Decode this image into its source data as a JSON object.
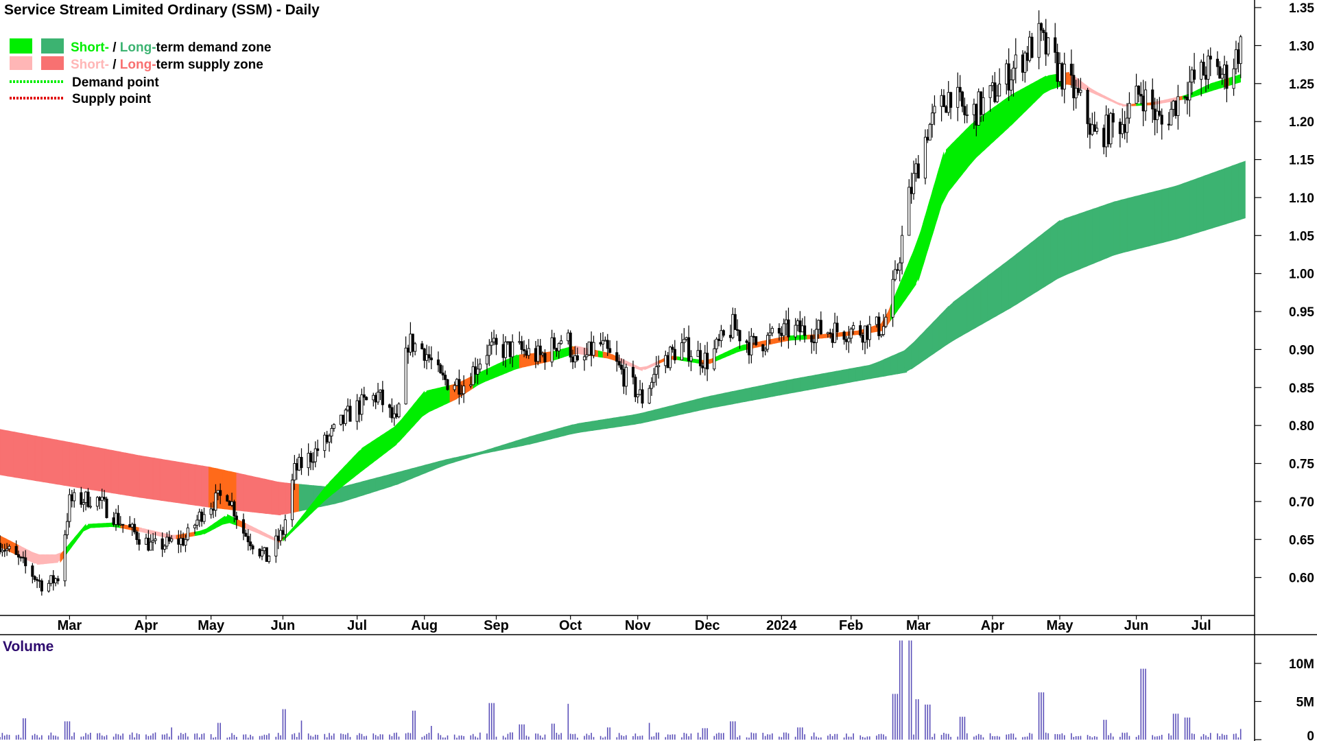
{
  "chart_data": {
    "type": "candlestick",
    "title": "Service Stream Limited Ordinary (SSM) - Daily",
    "legend": {
      "placement": "top-left",
      "items": [
        {
          "prefix": "Short-",
          "sep": " / ",
          "middle": "Long-",
          "suffix": "term demand zone",
          "short_color": "#00ee00",
          "long_color": "#3cb371"
        },
        {
          "prefix": "Short-",
          "sep": " / ",
          "middle": "Long-",
          "suffix": "term supply zone",
          "short_color": "#ffb6b6",
          "long_color": "#f87171"
        },
        {
          "label": "Demand point",
          "color": "#00ee00"
        },
        {
          "label": "Supply point",
          "color": "#e00000"
        }
      ]
    },
    "price_axis": {
      "min": 0.55,
      "max": 1.36,
      "ticks": [
        "1.35",
        "1.30",
        "1.25",
        "1.20",
        "1.15",
        "1.10",
        "1.05",
        "1.00",
        "0.95",
        "0.90",
        "0.85",
        "0.80",
        "0.75",
        "0.70",
        "0.65",
        "0.60"
      ]
    },
    "x_axis": {
      "start": "2023-01-30",
      "end": "2024-07-24",
      "labels": [
        {
          "label": "Mar",
          "date": "2023-03-01"
        },
        {
          "label": "Apr",
          "date": "2023-04-03"
        },
        {
          "label": "May",
          "date": "2023-05-01"
        },
        {
          "label": "Jun",
          "date": "2023-06-01"
        },
        {
          "label": "Jul",
          "date": "2023-07-03"
        },
        {
          "label": "Aug",
          "date": "2023-08-01"
        },
        {
          "label": "Sep",
          "date": "2023-09-01"
        },
        {
          "label": "Oct",
          "date": "2023-10-03"
        },
        {
          "label": "Nov",
          "date": "2023-11-01"
        },
        {
          "label": "Dec",
          "date": "2023-12-01"
        },
        {
          "label": "2024",
          "date": "2024-01-02"
        },
        {
          "label": "Feb",
          "date": "2024-02-01"
        },
        {
          "label": "Mar",
          "date": "2024-03-01"
        },
        {
          "label": "Apr",
          "date": "2024-04-02"
        },
        {
          "label": "May",
          "date": "2024-05-01"
        },
        {
          "label": "Jun",
          "date": "2024-06-03"
        },
        {
          "label": "Jul",
          "date": "2024-07-01"
        }
      ]
    },
    "price_path": [
      [
        "2023-01-30",
        0.645
      ],
      [
        "2023-02-08",
        0.62
      ],
      [
        "2023-02-18",
        0.588
      ],
      [
        "2023-02-24",
        0.6
      ],
      [
        "2023-03-01",
        0.7
      ],
      [
        "2023-03-12",
        0.705
      ],
      [
        "2023-03-24",
        0.67
      ],
      [
        "2023-04-06",
        0.64
      ],
      [
        "2023-04-20",
        0.65
      ],
      [
        "2023-04-28",
        0.69
      ],
      [
        "2023-05-08",
        0.712
      ],
      [
        "2023-05-15",
        0.66
      ],
      [
        "2023-05-25",
        0.625
      ],
      [
        "2023-06-01",
        0.66
      ],
      [
        "2023-06-06",
        0.74
      ],
      [
        "2023-06-20",
        0.78
      ],
      [
        "2023-07-01",
        0.82
      ],
      [
        "2023-07-12",
        0.84
      ],
      [
        "2023-07-20",
        0.8
      ],
      [
        "2023-07-25",
        0.91
      ],
      [
        "2023-08-01",
        0.9
      ],
      [
        "2023-08-08",
        0.86
      ],
      [
        "2023-08-18",
        0.855
      ],
      [
        "2023-08-28",
        0.9
      ],
      [
        "2023-09-10",
        0.9
      ],
      [
        "2023-09-20",
        0.89
      ],
      [
        "2023-10-01",
        0.92
      ],
      [
        "2023-10-06",
        0.875
      ],
      [
        "2023-10-15",
        0.91
      ],
      [
        "2023-10-25",
        0.87
      ],
      [
        "2023-11-03",
        0.835
      ],
      [
        "2023-11-10",
        0.88
      ],
      [
        "2023-11-20",
        0.905
      ],
      [
        "2023-12-01",
        0.885
      ],
      [
        "2023-12-12",
        0.93
      ],
      [
        "2023-12-20",
        0.905
      ],
      [
        "2024-01-05",
        0.925
      ],
      [
        "2024-01-20",
        0.925
      ],
      [
        "2024-02-05",
        0.925
      ],
      [
        "2024-02-15",
        0.93
      ],
      [
        "2024-02-20",
        0.99
      ],
      [
        "2024-02-26",
        1.1
      ],
      [
        "2024-03-05",
        1.19
      ],
      [
        "2024-03-15",
        1.24
      ],
      [
        "2024-03-22",
        1.205
      ],
      [
        "2024-04-02",
        1.235
      ],
      [
        "2024-04-15",
        1.285
      ],
      [
        "2024-04-22",
        1.31
      ],
      [
        "2024-04-30",
        1.27
      ],
      [
        "2024-05-10",
        1.225
      ],
      [
        "2024-05-16",
        1.18
      ],
      [
        "2024-05-28",
        1.2
      ],
      [
        "2024-06-05",
        1.24
      ],
      [
        "2024-06-14",
        1.195
      ],
      [
        "2024-06-24",
        1.245
      ],
      [
        "2024-07-04",
        1.27
      ],
      [
        "2024-07-12",
        1.26
      ],
      [
        "2024-07-18",
        1.3
      ]
    ],
    "short_zone": [
      [
        "2023-01-30",
        0.655,
        0.64
      ],
      [
        "2023-02-15",
        0.63,
        0.617
      ],
      [
        "2023-02-25",
        0.63,
        0.62
      ],
      [
        "2023-03-08",
        0.67,
        0.665
      ],
      [
        "2023-03-20",
        0.672,
        0.667
      ],
      [
        "2023-04-01",
        0.665,
        0.66
      ],
      [
        "2023-04-15",
        0.655,
        0.65
      ],
      [
        "2023-04-28",
        0.662,
        0.657
      ],
      [
        "2023-05-08",
        0.683,
        0.673
      ],
      [
        "2023-05-20",
        0.665,
        0.66
      ],
      [
        "2023-05-31",
        0.648,
        0.645
      ],
      [
        "2023-06-05",
        0.664,
        0.66
      ],
      [
        "2023-06-20",
        0.722,
        0.704
      ],
      [
        "2023-07-05",
        0.77,
        0.74
      ],
      [
        "2023-07-20",
        0.8,
        0.775
      ],
      [
        "2023-08-01",
        0.845,
        0.815
      ],
      [
        "2023-08-15",
        0.855,
        0.835
      ],
      [
        "2023-08-25",
        0.87,
        0.855
      ],
      [
        "2023-09-10",
        0.893,
        0.875
      ],
      [
        "2023-09-25",
        0.897,
        0.885
      ],
      [
        "2023-10-05",
        0.905,
        0.895
      ],
      [
        "2023-10-20",
        0.895,
        0.888
      ],
      [
        "2023-11-03",
        0.875,
        0.872
      ],
      [
        "2023-11-15",
        0.892,
        0.888
      ],
      [
        "2023-12-01",
        0.885,
        0.88
      ],
      [
        "2023-12-15",
        0.905,
        0.898
      ],
      [
        "2024-01-05",
        0.918,
        0.912
      ],
      [
        "2024-01-20",
        0.92,
        0.915
      ],
      [
        "2024-02-05",
        0.925,
        0.92
      ],
      [
        "2024-02-15",
        0.935,
        0.925
      ],
      [
        "2024-03-01",
        1.045,
        0.99
      ],
      [
        "2024-03-12",
        1.16,
        1.1
      ],
      [
        "2024-03-25",
        1.2,
        1.15
      ],
      [
        "2024-04-10",
        1.235,
        1.195
      ],
      [
        "2024-04-25",
        1.26,
        1.24
      ],
      [
        "2024-05-05",
        1.265,
        1.25
      ],
      [
        "2024-05-15",
        1.242,
        1.238
      ],
      [
        "2024-05-28",
        1.222,
        1.22
      ],
      [
        "2024-06-10",
        1.225,
        1.222
      ],
      [
        "2024-06-25",
        1.235,
        1.23
      ],
      [
        "2024-07-05",
        1.25,
        1.24
      ],
      [
        "2024-07-18",
        1.262,
        1.252
      ]
    ],
    "long_zone": [
      [
        "2023-01-30",
        0.795,
        0.735
      ],
      [
        "2023-03-01",
        0.778,
        0.72
      ],
      [
        "2023-04-01",
        0.76,
        0.705
      ],
      [
        "2023-05-01",
        0.745,
        0.692
      ],
      [
        "2023-05-31",
        0.725,
        0.682
      ],
      [
        "2023-06-25",
        0.718,
        0.698
      ],
      [
        "2023-07-20",
        0.738,
        0.722
      ],
      [
        "2023-08-10",
        0.755,
        0.748
      ],
      [
        "2023-08-25",
        0.765,
        0.762
      ],
      [
        "2023-09-15",
        0.785,
        0.775
      ],
      [
        "2023-10-05",
        0.802,
        0.79
      ],
      [
        "2023-11-01",
        0.815,
        0.802
      ],
      [
        "2023-12-01",
        0.838,
        0.822
      ],
      [
        "2024-01-05",
        0.86,
        0.842
      ],
      [
        "2024-02-10",
        0.88,
        0.862
      ],
      [
        "2024-02-25",
        0.9,
        0.87
      ],
      [
        "2024-03-15",
        0.96,
        0.91
      ],
      [
        "2024-04-10",
        1.02,
        0.955
      ],
      [
        "2024-05-01",
        1.07,
        0.995
      ],
      [
        "2024-05-25",
        1.095,
        1.025
      ],
      [
        "2024-06-20",
        1.115,
        1.045
      ],
      [
        "2024-07-20",
        1.148,
        1.073
      ]
    ],
    "volume_axis": {
      "min": 0,
      "max": 13500000,
      "ticks": [
        "10M",
        "5M",
        "0"
      ]
    },
    "volume_title": "Volume",
    "volume_spikes": [
      [
        "2023-02-10",
        2800000
      ],
      [
        "2023-02-28",
        2400000
      ],
      [
        "2023-04-15",
        1600000
      ],
      [
        "2023-05-05",
        2200000
      ],
      [
        "2023-06-02",
        4000000
      ],
      [
        "2023-06-10",
        2500000
      ],
      [
        "2023-07-28",
        3800000
      ],
      [
        "2023-08-05",
        1800000
      ],
      [
        "2023-08-30",
        4800000
      ],
      [
        "2023-09-12",
        2000000
      ],
      [
        "2023-09-25",
        2100000
      ],
      [
        "2023-10-01",
        4700000
      ],
      [
        "2023-10-20",
        1600000
      ],
      [
        "2023-11-05",
        2200000
      ],
      [
        "2023-11-30",
        1500000
      ],
      [
        "2023-12-12",
        2400000
      ],
      [
        "2024-01-10",
        1600000
      ],
      [
        "2024-02-20",
        6000000
      ],
      [
        "2024-02-23",
        13000000
      ],
      [
        "2024-02-26",
        13000000
      ],
      [
        "2024-03-01",
        5300000
      ],
      [
        "2024-03-05",
        4600000
      ],
      [
        "2024-03-20",
        3000000
      ],
      [
        "2024-04-23",
        6200000
      ],
      [
        "2024-05-20",
        2600000
      ],
      [
        "2024-06-06",
        9300000
      ],
      [
        "2024-06-20",
        3400000
      ],
      [
        "2024-06-25",
        2900000
      ],
      [
        "2024-07-19",
        1400000
      ]
    ]
  }
}
